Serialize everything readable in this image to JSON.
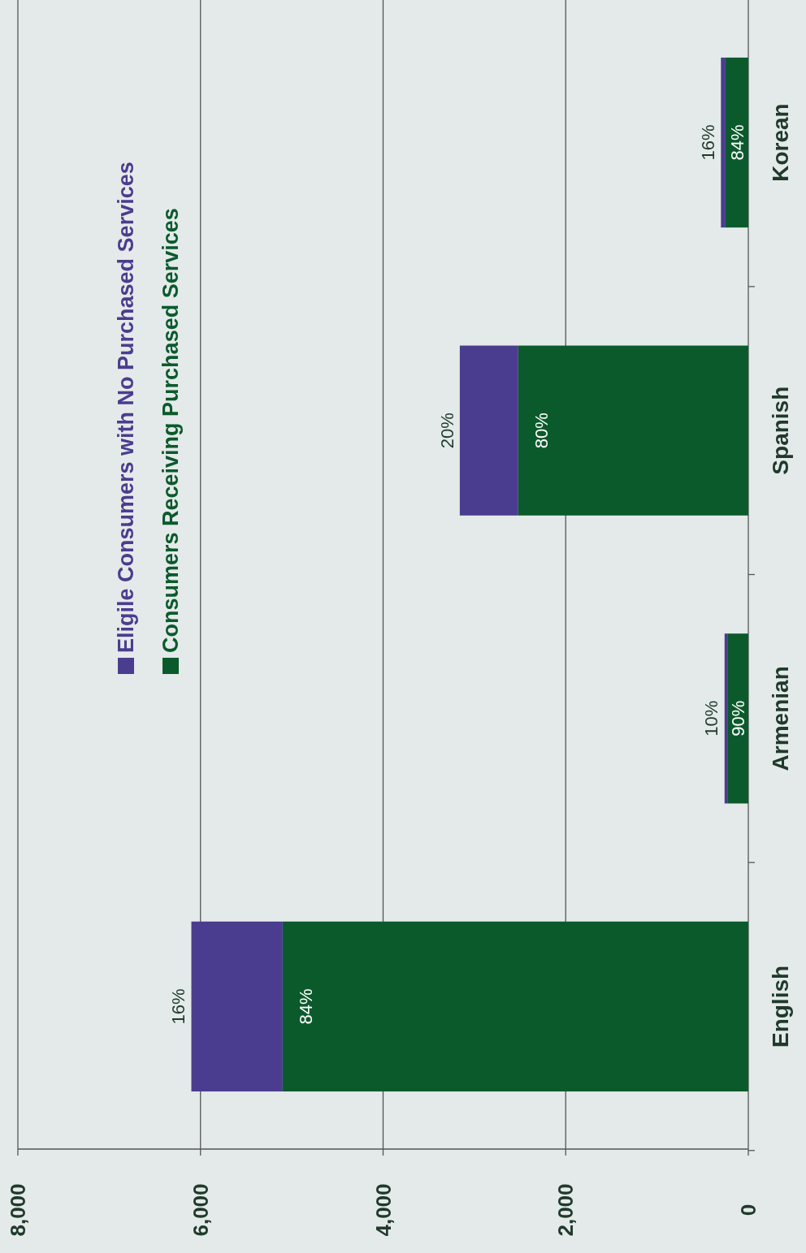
{
  "chart_data": {
    "type": "bar",
    "stacked": true,
    "orientation": "horizontal",
    "categories": [
      "Korean",
      "Spanish",
      "Armenian",
      "English"
    ],
    "series": [
      {
        "name": "Consumers Receiving Purchased Services",
        "color": "#0b5a2c",
        "values": [
          250,
          2520,
          230,
          5100
        ]
      },
      {
        "name": "Eligile Consumers with No Purchased Services",
        "color": "#4a3d8f",
        "values": [
          50,
          640,
          30,
          1000
        ]
      }
    ],
    "xlim": [
      8000,
      0
    ],
    "xticks": [
      {
        "value": 8000,
        "label": "8,000"
      },
      {
        "value": 6000,
        "label": "6,000"
      },
      {
        "value": 4000,
        "label": "4,000"
      },
      {
        "value": 2000,
        "label": "2,000"
      },
      {
        "value": 0,
        "label": "0"
      }
    ],
    "annotations": [
      {
        "text": "16%",
        "x": 6100,
        "y": "English"
      },
      {
        "text": "84%",
        "x": 5100,
        "y": "English"
      },
      {
        "text": "10%",
        "x": 260,
        "y": "Armenian"
      },
      {
        "text": "90%",
        "x": 230,
        "y": "Armenian"
      },
      {
        "text": "20%",
        "x": 3160,
        "y": "Spanish"
      },
      {
        "text": "80%",
        "x": 2520,
        "y": "Spanish"
      },
      {
        "text": "16%",
        "x": 300,
        "y": "Korean"
      },
      {
        "text": "84%",
        "x": 250,
        "y": "Korean"
      }
    ],
    "grid": "x",
    "legend": "top left"
  }
}
